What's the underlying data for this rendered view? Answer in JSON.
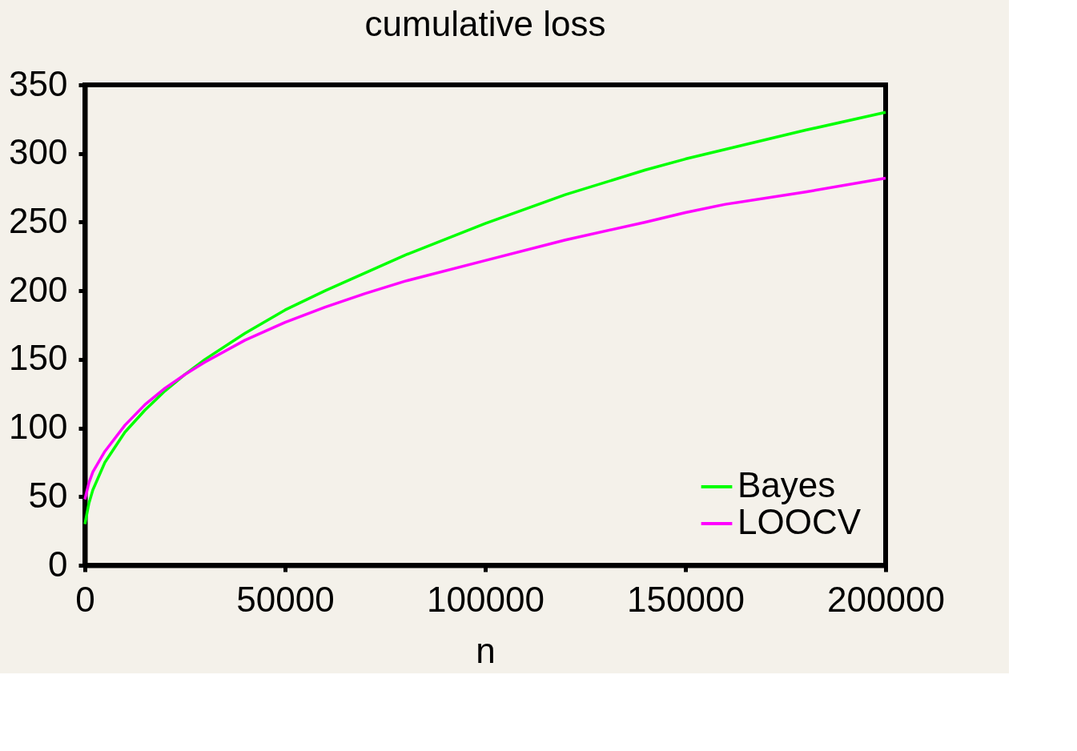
{
  "chart_data": {
    "type": "line",
    "title": "cumulative loss",
    "xlabel": "n",
    "x": [
      0,
      1000,
      2000,
      5000,
      10000,
      15000,
      20000,
      25000,
      30000,
      40000,
      50000,
      60000,
      70000,
      80000,
      100000,
      120000,
      140000,
      150000,
      160000,
      180000,
      200000
    ],
    "series": [
      {
        "name": "Bayes",
        "color": "#00ff00",
        "values": [
          30,
          45,
          55,
          75,
          97,
          113,
          127,
          139,
          150,
          169,
          186,
          200,
          213,
          226,
          249,
          270,
          288,
          296,
          303,
          317,
          330
        ]
      },
      {
        "name": "LOOCV",
        "color": "#ff00ff",
        "values": [
          48,
          60,
          68,
          83,
          102,
          117,
          129,
          139,
          148,
          164,
          177,
          188,
          198,
          207,
          222,
          237,
          250,
          257,
          263,
          272,
          282
        ]
      }
    ],
    "xlim": [
      0,
      200000
    ],
    "xticks": [
      0,
      50000,
      100000,
      150000,
      200000
    ],
    "ylim": [
      0,
      350
    ],
    "yticks": [
      0,
      50,
      100,
      150,
      200,
      250,
      300,
      350
    ],
    "grid": false,
    "legend": "bottom right",
    "marker": "none",
    "line_style": "solid"
  }
}
